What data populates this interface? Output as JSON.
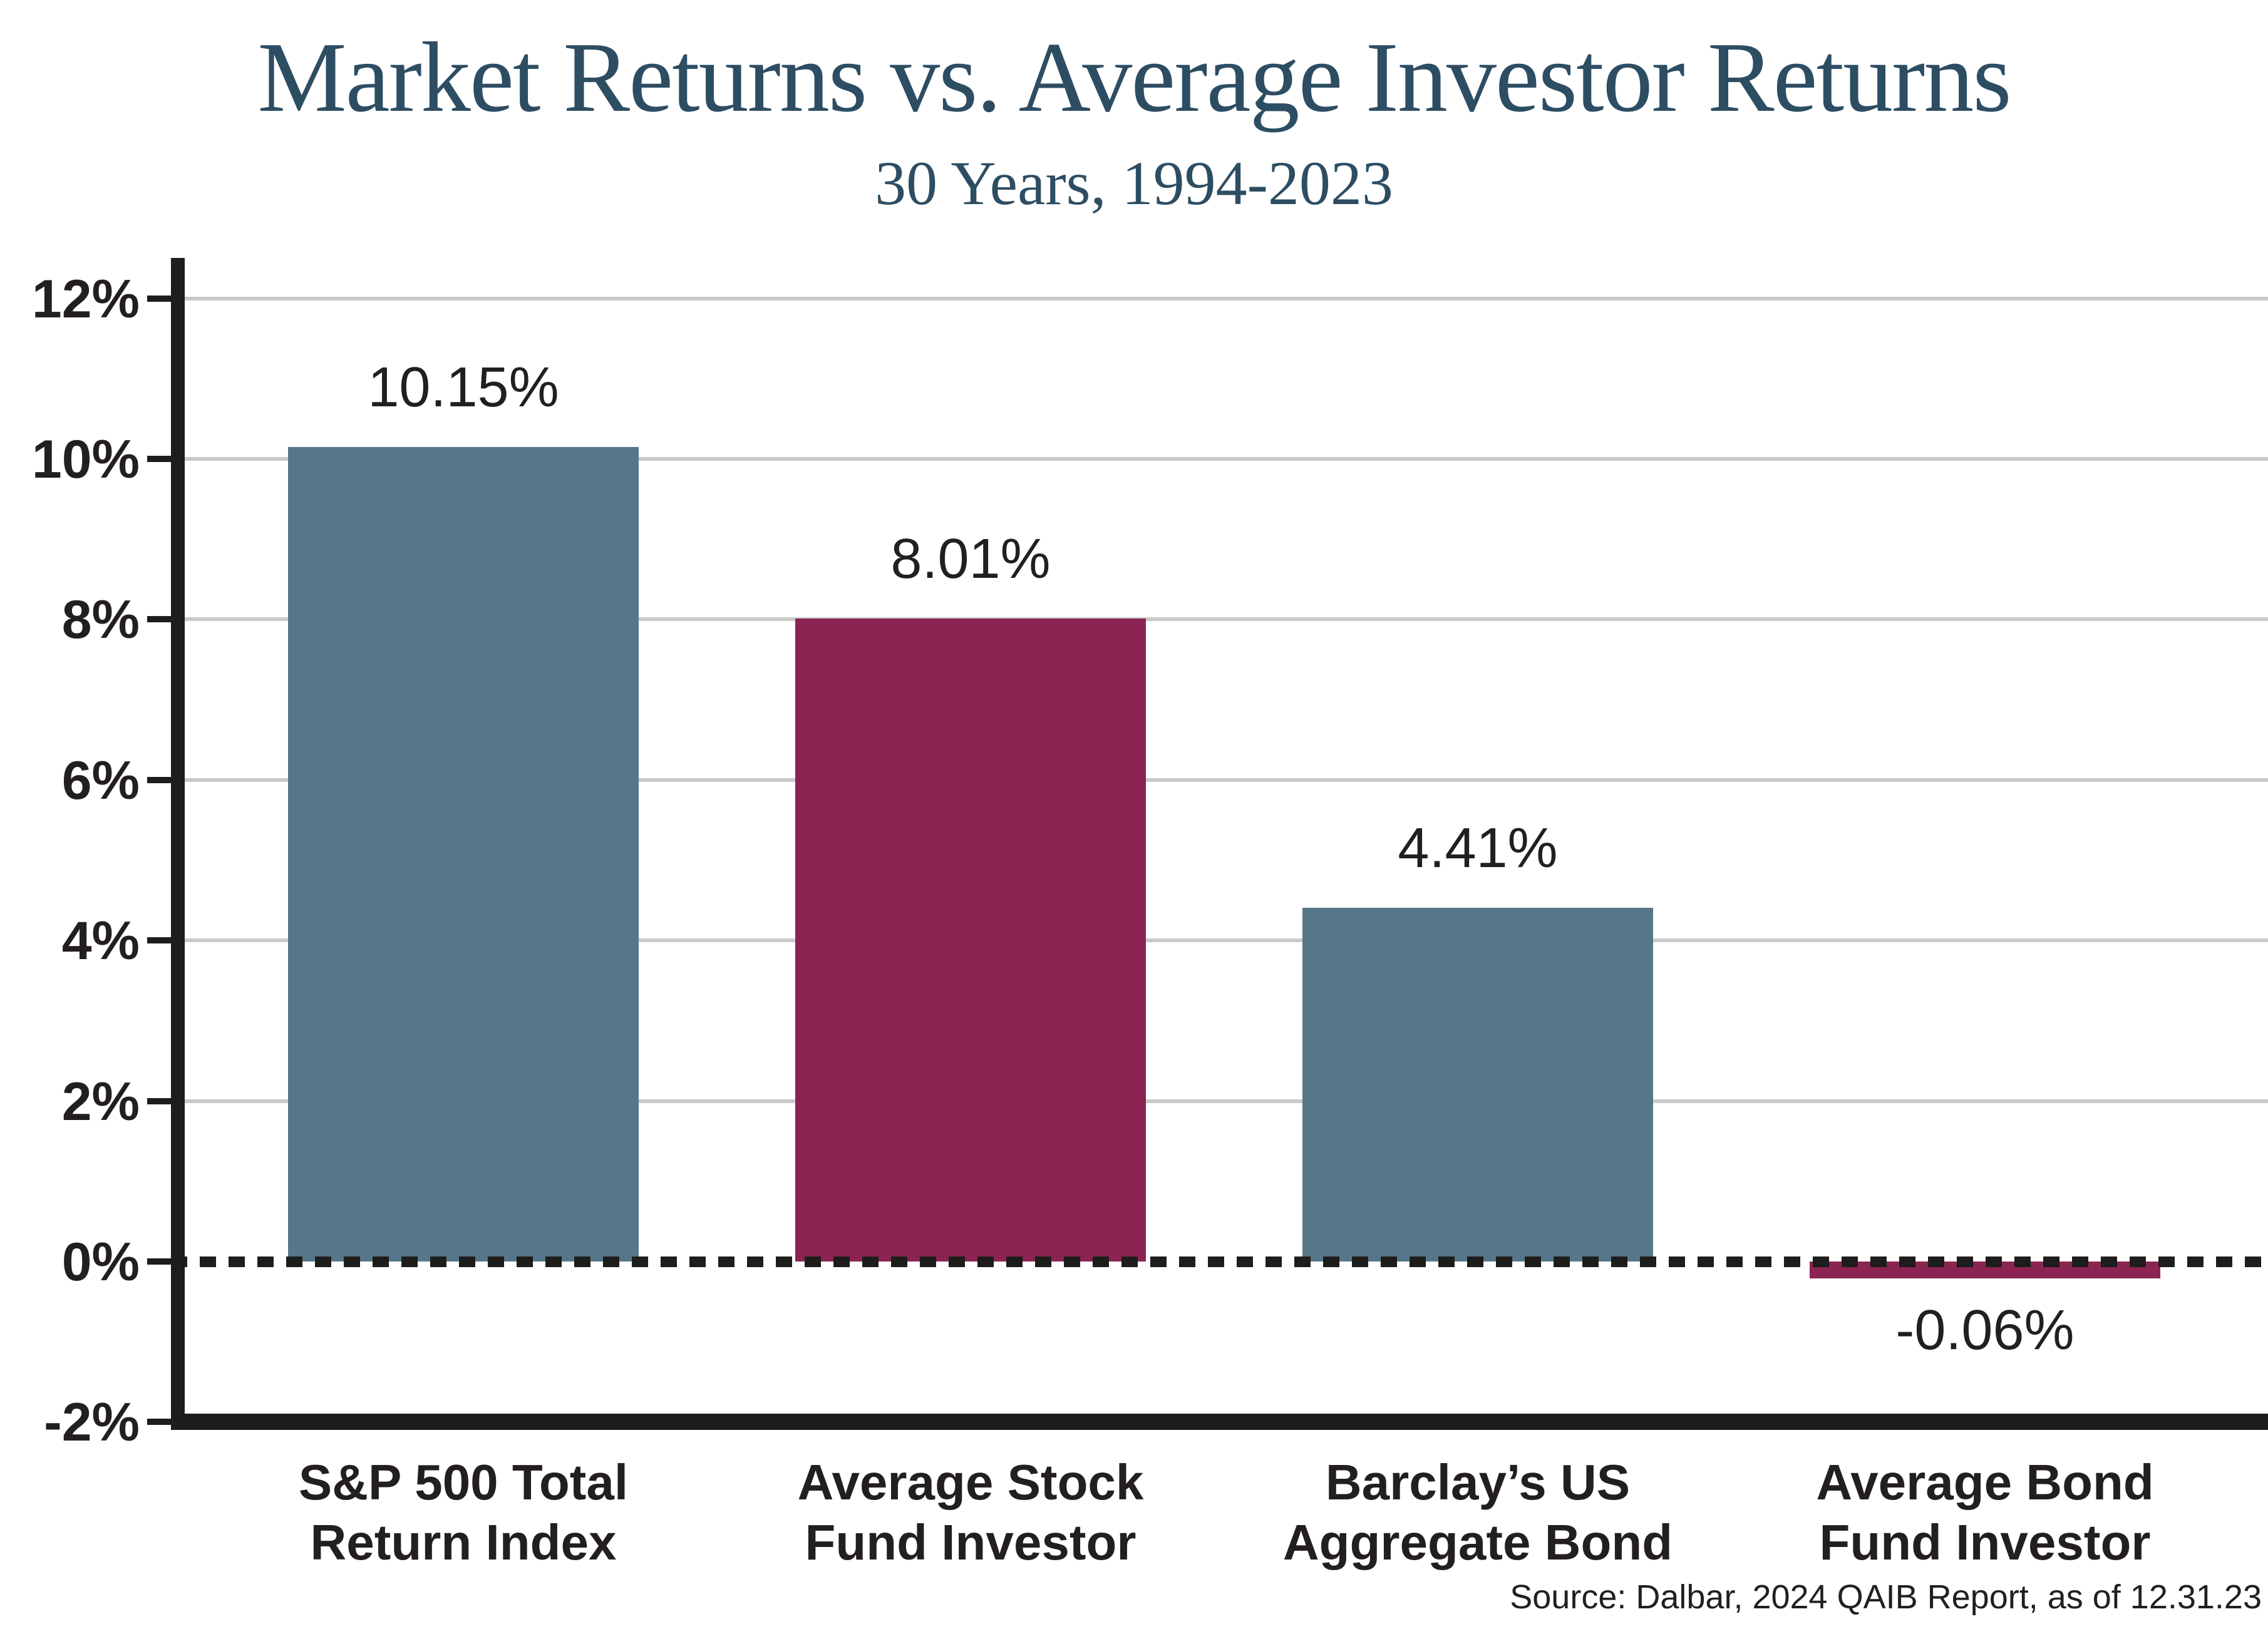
{
  "chart_data": {
    "type": "bar",
    "title": "Market Returns vs. Average Investor Returns",
    "subtitle": "30 Years, 1994-2023",
    "categories": [
      [
        "S&P 500 Total",
        "Return Index"
      ],
      [
        "Average Stock",
        "Fund Investor"
      ],
      [
        "Barclay’s US",
        "Aggregate Bond"
      ],
      [
        "Average Bond",
        "Fund Investor"
      ]
    ],
    "values": [
      10.15,
      8.01,
      4.41,
      -0.06
    ],
    "value_labels": [
      "10.15%",
      "8.01%",
      "4.41%",
      "-0.06%"
    ],
    "bar_colors": [
      "#577689",
      "#8b2452",
      "#577689",
      "#8b2452"
    ],
    "ylim": [
      -2,
      12
    ],
    "ytick_step": 2,
    "ytick_labels": [
      "12%",
      "10%",
      "8%",
      "6%",
      "4%",
      "2%",
      "0%",
      "-2%"
    ],
    "ytick_values": [
      12,
      10,
      8,
      6,
      4,
      2,
      0,
      -2
    ],
    "grid": true,
    "legend": "none",
    "zero_line": "dashed",
    "source": "Source: Dalbar, 2024 QAIB Report, as of 12.31.23",
    "colors": {
      "title": "#2d4d63",
      "bar_blue": "#577689",
      "bar_maroon": "#8b2452",
      "grid": "#c9c9c9",
      "axis": "#1d1d1b",
      "text": "#231f20",
      "background": "#ffffff"
    }
  }
}
